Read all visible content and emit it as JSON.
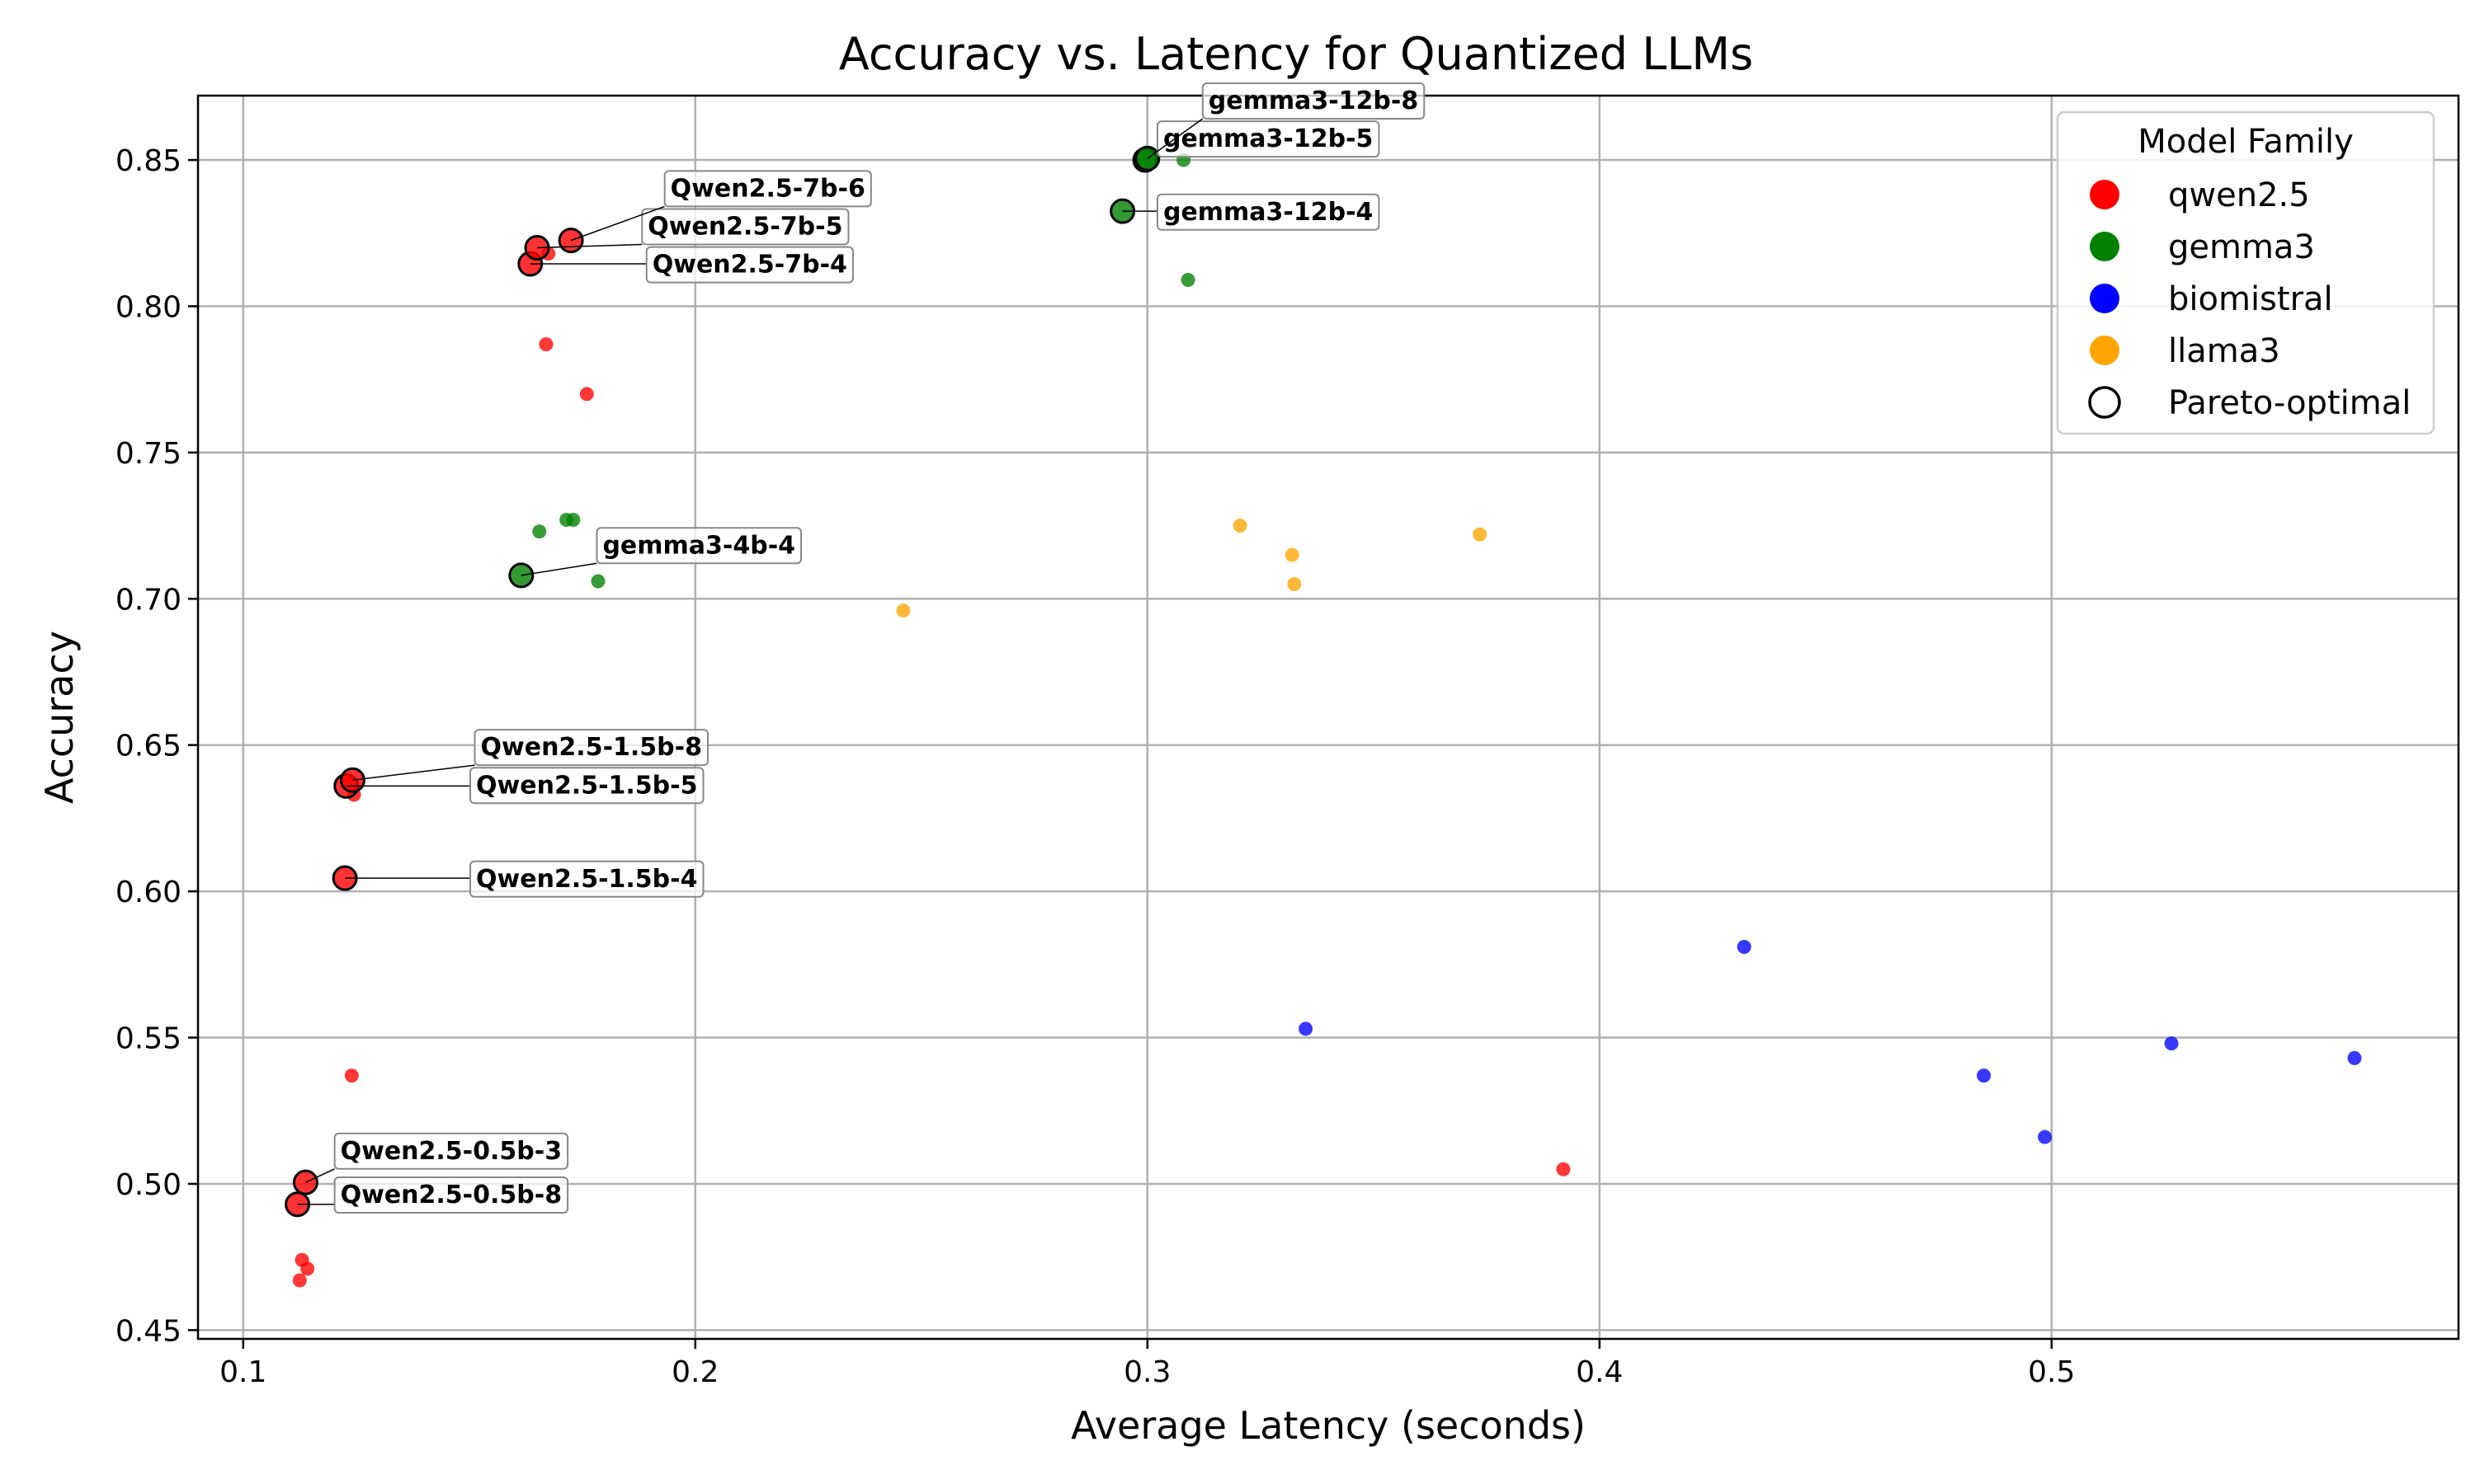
{
  "colors": {
    "qwen2.5": "#ff0000",
    "gemma3": "#008000",
    "biomistral": "#0000ff",
    "llama3": "#ffa500",
    "grid": "#b0b0b0"
  },
  "chart_data": {
    "type": "scatter",
    "title": "Accuracy vs. Latency for Quantized LLMs",
    "xlabel": "Average Latency (seconds)",
    "ylabel": "Accuracy",
    "xlim": [
      0.09,
      0.59
    ],
    "ylim": [
      0.447,
      0.872
    ],
    "xticks": [
      0.1,
      0.2,
      0.3,
      0.4,
      0.5
    ],
    "xtick_labels": [
      "0.1",
      "0.2",
      "0.3",
      "0.4",
      "0.5"
    ],
    "yticks": [
      0.45,
      0.5,
      0.55,
      0.6,
      0.65,
      0.7,
      0.75,
      0.8,
      0.85
    ],
    "ytick_labels": [
      "0.45",
      "0.50",
      "0.55",
      "0.60",
      "0.65",
      "0.70",
      "0.75",
      "0.80",
      "0.85"
    ],
    "grid": true,
    "legend": {
      "title": "Model Family",
      "placement": "top-right",
      "entries": [
        {
          "label": "qwen2.5",
          "family": "qwen2.5"
        },
        {
          "label": "gemma3",
          "family": "gemma3"
        },
        {
          "label": "biomistral",
          "family": "biomistral"
        },
        {
          "label": "llama3",
          "family": "llama3"
        },
        {
          "label": "Pareto-optimal",
          "family": "pareto"
        }
      ]
    },
    "series": [
      {
        "family": "qwen2.5",
        "points": [
          {
            "x": 0.1125,
            "y": 0.467
          },
          {
            "x": 0.113,
            "y": 0.474
          },
          {
            "x": 0.1142,
            "y": 0.471
          },
          {
            "x": 0.124,
            "y": 0.537
          },
          {
            "x": 0.1245,
            "y": 0.633
          },
          {
            "x": 0.392,
            "y": 0.505
          },
          {
            "x": 0.167,
            "y": 0.787
          },
          {
            "x": 0.176,
            "y": 0.77
          },
          {
            "x": 0.1675,
            "y": 0.818
          }
        ]
      },
      {
        "family": "gemma3",
        "points": [
          {
            "x": 0.1655,
            "y": 0.723
          },
          {
            "x": 0.1715,
            "y": 0.727
          },
          {
            "x": 0.173,
            "y": 0.727
          },
          {
            "x": 0.1785,
            "y": 0.706
          },
          {
            "x": 0.309,
            "y": 0.809
          },
          {
            "x": 0.308,
            "y": 0.85
          }
        ]
      },
      {
        "family": "biomistral",
        "points": [
          {
            "x": 0.335,
            "y": 0.553
          },
          {
            "x": 0.432,
            "y": 0.581
          },
          {
            "x": 0.485,
            "y": 0.537
          },
          {
            "x": 0.4985,
            "y": 0.516
          },
          {
            "x": 0.5265,
            "y": 0.548
          },
          {
            "x": 0.567,
            "y": 0.543
          }
        ]
      },
      {
        "family": "llama3",
        "points": [
          {
            "x": 0.246,
            "y": 0.696
          },
          {
            "x": 0.3205,
            "y": 0.725
          },
          {
            "x": 0.332,
            "y": 0.715
          },
          {
            "x": 0.3325,
            "y": 0.705
          },
          {
            "x": 0.3735,
            "y": 0.722
          }
        ]
      }
    ],
    "pareto_points": [
      {
        "label": "Qwen2.5-0.5b-8",
        "family": "qwen2.5",
        "x": 0.112,
        "y": 0.493,
        "lx": 0.1215,
        "ly": 0.4935
      },
      {
        "label": "Qwen2.5-0.5b-3",
        "family": "qwen2.5",
        "x": 0.1138,
        "y": 0.5005,
        "lx": 0.1215,
        "ly": 0.5085
      },
      {
        "label": "Qwen2.5-1.5b-4",
        "family": "qwen2.5",
        "x": 0.1225,
        "y": 0.6045,
        "lx": 0.1515,
        "ly": 0.6015
      },
      {
        "label": "Qwen2.5-1.5b-5",
        "family": "qwen2.5",
        "x": 0.1228,
        "y": 0.636,
        "lx": 0.1515,
        "ly": 0.6335
      },
      {
        "label": "Qwen2.5-1.5b-8",
        "family": "qwen2.5",
        "x": 0.1242,
        "y": 0.638,
        "lx": 0.1525,
        "ly": 0.6465
      },
      {
        "label": "gemma3-4b-4",
        "family": "gemma3",
        "x": 0.1615,
        "y": 0.708,
        "lx": 0.1795,
        "ly": 0.7155
      },
      {
        "label": "Qwen2.5-7b-4",
        "family": "qwen2.5",
        "x": 0.1635,
        "y": 0.8145,
        "lx": 0.1905,
        "ly": 0.8115
      },
      {
        "label": "Qwen2.5-7b-5",
        "family": "qwen2.5",
        "x": 0.165,
        "y": 0.82,
        "lx": 0.1895,
        "ly": 0.8245
      },
      {
        "label": "Qwen2.5-7b-6",
        "family": "qwen2.5",
        "x": 0.1725,
        "y": 0.8225,
        "lx": 0.1945,
        "ly": 0.8375
      },
      {
        "label": "gemma3-12b-4",
        "family": "gemma3",
        "x": 0.2945,
        "y": 0.8325,
        "lx": 0.3035,
        "ly": 0.8295
      },
      {
        "label": "gemma3-12b-5",
        "family": "gemma3",
        "x": 0.2995,
        "y": 0.85,
        "lx": 0.3035,
        "ly": 0.8545
      },
      {
        "label": "gemma3-12b-8",
        "family": "gemma3",
        "x": 0.3,
        "y": 0.8505,
        "lx": 0.3135,
        "ly": 0.8675
      }
    ]
  }
}
